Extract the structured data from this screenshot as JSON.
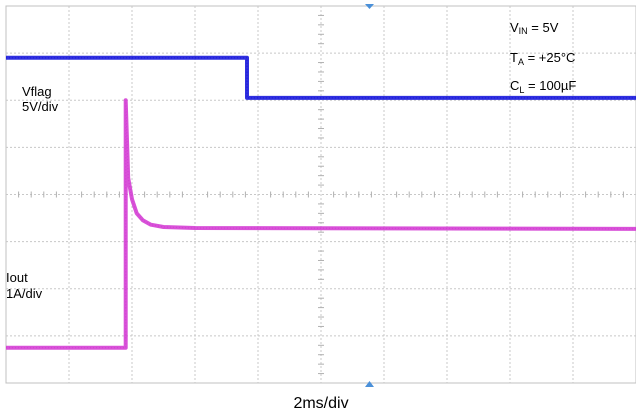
{
  "chart_data": {
    "type": "line",
    "title": "",
    "xlabel": "2ms/div",
    "grid": true,
    "divisions": {
      "x": 10,
      "y": 8
    },
    "xlim": [
      0,
      20
    ],
    "x_unit": "ms",
    "conditions": [
      {
        "symbol": "V",
        "subscript": "IN",
        "rest": " = 5V"
      },
      {
        "symbol": "T",
        "subscript": "A",
        "rest": " = +25°C"
      },
      {
        "symbol": "C",
        "subscript": "L",
        "rest": " = 100µF"
      }
    ],
    "series": [
      {
        "name": "Vflag",
        "scale": "5V/div",
        "color": "#1a1adb",
        "points": [
          [
            0,
            6.9
          ],
          [
            7.65,
            6.9
          ],
          [
            7.65,
            6.05
          ],
          [
            20,
            6.05
          ]
        ]
      },
      {
        "name": "Iout",
        "scale": "1A/div",
        "color": "#d43fd4",
        "points": [
          [
            0,
            0.75
          ],
          [
            3.8,
            0.75
          ],
          [
            3.8,
            6.0
          ],
          [
            3.88,
            4.35
          ],
          [
            4.0,
            3.9
          ],
          [
            4.15,
            3.6
          ],
          [
            4.35,
            3.45
          ],
          [
            4.6,
            3.36
          ],
          [
            5.0,
            3.31
          ],
          [
            6.0,
            3.29
          ],
          [
            20,
            3.27
          ]
        ]
      }
    ]
  }
}
